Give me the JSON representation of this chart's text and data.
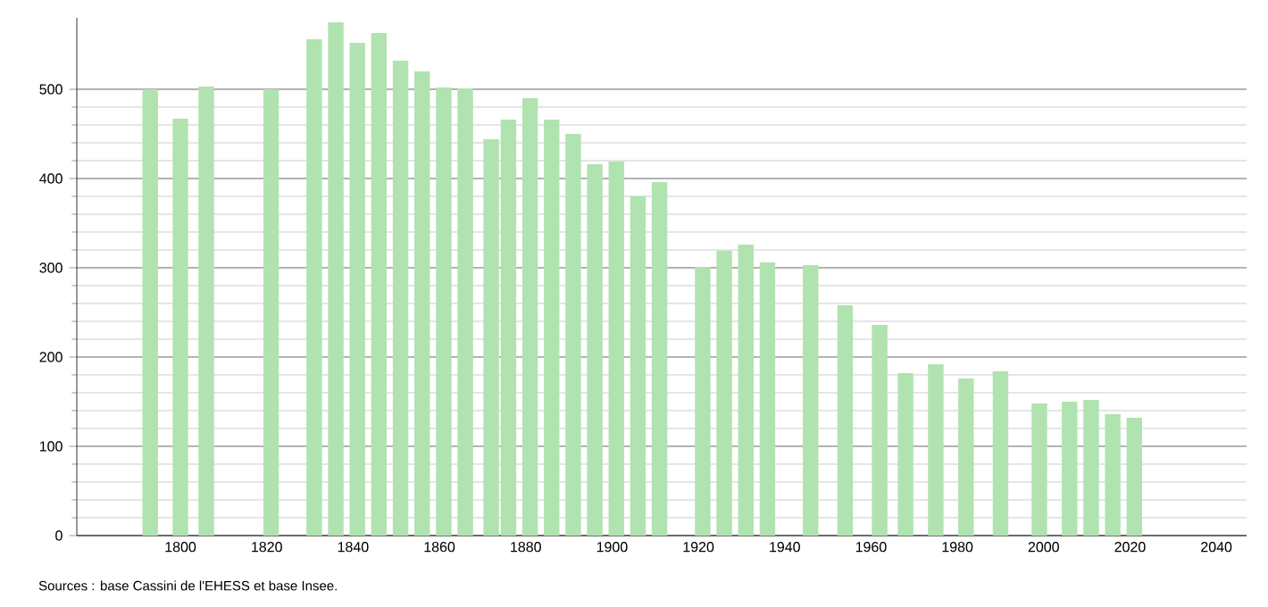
{
  "chart_data": {
    "type": "bar",
    "color": "#b0e3b0",
    "x": [
      1793,
      1800,
      1806,
      1821,
      1831,
      1836,
      1841,
      1846,
      1851,
      1856,
      1861,
      1866,
      1872,
      1876,
      1881,
      1886,
      1891,
      1896,
      1901,
      1906,
      1911,
      1921,
      1926,
      1931,
      1936,
      1946,
      1954,
      1962,
      1968,
      1975,
      1982,
      1990,
      1999,
      2006,
      2011,
      2016,
      2021
    ],
    "values": [
      500,
      467,
      503,
      500,
      556,
      575,
      552,
      563,
      532,
      520,
      502,
      501,
      444,
      466,
      490,
      466,
      450,
      416,
      419,
      380,
      396,
      301,
      319,
      326,
      306,
      303,
      258,
      236,
      182,
      192,
      176,
      184,
      148,
      150,
      152,
      136,
      132
    ],
    "xlim": [
      1776,
      2047
    ],
    "ylim": [
      0,
      580
    ],
    "xticks": [
      1800,
      1820,
      1840,
      1860,
      1880,
      1900,
      1920,
      1940,
      1960,
      1980,
      2000,
      2020,
      2040
    ],
    "yticks": [
      0,
      100,
      200,
      300,
      400,
      500
    ],
    "grid": "y",
    "annotations": [
      "Sources : base Cassini de l'EHESS et base Insee."
    ]
  }
}
